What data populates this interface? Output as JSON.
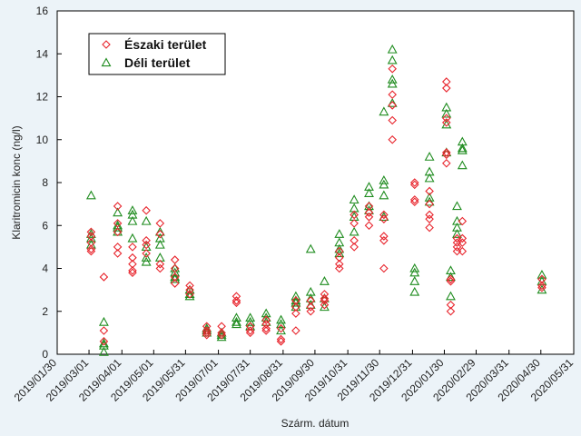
{
  "chart_data": {
    "type": "scatter",
    "title": "",
    "xlabel": "Szárm. dátum",
    "ylabel": "Klaritromicin konc (ng/l)",
    "ylim": [
      0,
      16
    ],
    "yticks": [
      "0",
      "2",
      "4",
      "6",
      "8",
      "10",
      "12",
      "14",
      "16"
    ],
    "xlim": [
      "2019-01-30",
      "2020-05-31"
    ],
    "xticks": [
      {
        "label": "2019/01/30",
        "date": "2019-01-30"
      },
      {
        "label": "2019/03/01",
        "date": "2019-03-01"
      },
      {
        "label": "2019/04/01",
        "date": "2019-04-01"
      },
      {
        "label": "2019/05/01",
        "date": "2019-05-01"
      },
      {
        "label": "2019/05/31",
        "date": "2019-05-31"
      },
      {
        "label": "2019/07/01",
        "date": "2019-07-01"
      },
      {
        "label": "2019/07/31",
        "date": "2019-07-31"
      },
      {
        "label": "2019/08/31",
        "date": "2019-08-31"
      },
      {
        "label": "2019/09/30",
        "date": "2019-09-30"
      },
      {
        "label": "2019/10/31",
        "date": "2019-10-31"
      },
      {
        "label": "2019/11/30",
        "date": "2019-11-30"
      },
      {
        "label": "2019/12/31",
        "date": "2019-12-31"
      },
      {
        "label": "2020/01/30",
        "date": "2020-01-30"
      },
      {
        "label": "2020/02/29",
        "date": "2020-02-29"
      },
      {
        "label": "2020/03/31",
        "date": "2020-03-31"
      },
      {
        "label": "2020/04/30",
        "date": "2020-04-30"
      },
      {
        "label": "2020/05/31",
        "date": "2020-05-31"
      }
    ],
    "grid": false,
    "legend_position": "top-left",
    "series": [
      {
        "name": "Északi terület",
        "marker": "diamond",
        "color": "#e8242c",
        "points": [
          [
            "2019-03-03",
            5.7
          ],
          [
            "2019-03-03",
            5.5
          ],
          [
            "2019-03-03",
            5.2
          ],
          [
            "2019-03-03",
            4.9
          ],
          [
            "2019-03-03",
            4.8
          ],
          [
            "2019-03-15",
            3.6
          ],
          [
            "2019-03-15",
            1.1
          ],
          [
            "2019-03-15",
            0.6
          ],
          [
            "2019-03-28",
            6.9
          ],
          [
            "2019-03-28",
            6.1
          ],
          [
            "2019-03-28",
            5.7
          ],
          [
            "2019-03-28",
            5.0
          ],
          [
            "2019-03-28",
            4.7
          ],
          [
            "2019-04-11",
            5.0
          ],
          [
            "2019-04-11",
            4.5
          ],
          [
            "2019-04-11",
            4.2
          ],
          [
            "2019-04-11",
            3.9
          ],
          [
            "2019-04-11",
            3.8
          ],
          [
            "2019-04-24",
            6.7
          ],
          [
            "2019-04-24",
            5.3
          ],
          [
            "2019-04-24",
            5.1
          ],
          [
            "2019-04-24",
            4.7
          ],
          [
            "2019-05-07",
            6.1
          ],
          [
            "2019-05-07",
            5.6
          ],
          [
            "2019-05-07",
            4.2
          ],
          [
            "2019-05-07",
            4.0
          ],
          [
            "2019-05-21",
            4.4
          ],
          [
            "2019-05-21",
            4.0
          ],
          [
            "2019-05-21",
            3.6
          ],
          [
            "2019-05-21",
            3.3
          ],
          [
            "2019-06-04",
            3.2
          ],
          [
            "2019-06-04",
            3.0
          ],
          [
            "2019-06-04",
            2.8
          ],
          [
            "2019-06-20",
            1.3
          ],
          [
            "2019-06-20",
            1.1
          ],
          [
            "2019-06-20",
            1.0
          ],
          [
            "2019-06-20",
            0.9
          ],
          [
            "2019-07-04",
            1.3
          ],
          [
            "2019-07-04",
            1.0
          ],
          [
            "2019-07-04",
            0.9
          ],
          [
            "2019-07-18",
            2.7
          ],
          [
            "2019-07-18",
            2.5
          ],
          [
            "2019-07-18",
            2.4
          ],
          [
            "2019-07-31",
            1.3
          ],
          [
            "2019-07-31",
            1.1
          ],
          [
            "2019-07-31",
            1.0
          ],
          [
            "2019-08-15",
            1.6
          ],
          [
            "2019-08-15",
            1.4
          ],
          [
            "2019-08-15",
            1.2
          ],
          [
            "2019-08-15",
            1.1
          ],
          [
            "2019-08-29",
            1.2
          ],
          [
            "2019-08-29",
            0.7
          ],
          [
            "2019-08-29",
            0.6
          ],
          [
            "2019-09-12",
            2.5
          ],
          [
            "2019-09-12",
            2.2
          ],
          [
            "2019-09-12",
            1.9
          ],
          [
            "2019-09-12",
            1.1
          ],
          [
            "2019-09-26",
            2.5
          ],
          [
            "2019-09-26",
            2.2
          ],
          [
            "2019-09-26",
            2.0
          ],
          [
            "2019-10-09",
            2.8
          ],
          [
            "2019-10-09",
            2.6
          ],
          [
            "2019-10-09",
            2.5
          ],
          [
            "2019-10-09",
            2.3
          ],
          [
            "2019-10-23",
            4.8
          ],
          [
            "2019-10-23",
            4.5
          ],
          [
            "2019-10-23",
            4.2
          ],
          [
            "2019-10-23",
            4.0
          ],
          [
            "2019-11-06",
            6.5
          ],
          [
            "2019-11-06",
            6.1
          ],
          [
            "2019-11-06",
            5.3
          ],
          [
            "2019-11-06",
            5.0
          ],
          [
            "2019-11-20",
            6.9
          ],
          [
            "2019-11-20",
            6.6
          ],
          [
            "2019-11-20",
            6.4
          ],
          [
            "2019-11-20",
            6.0
          ],
          [
            "2019-12-04",
            6.5
          ],
          [
            "2019-12-04",
            6.3
          ],
          [
            "2019-12-04",
            5.5
          ],
          [
            "2019-12-04",
            5.3
          ],
          [
            "2019-12-04",
            4.0
          ],
          [
            "2019-12-12",
            13.3
          ],
          [
            "2019-12-12",
            12.1
          ],
          [
            "2019-12-12",
            11.6
          ],
          [
            "2019-12-12",
            10.9
          ],
          [
            "2019-12-12",
            10.0
          ],
          [
            "2020-01-02",
            8.0
          ],
          [
            "2020-01-02",
            7.9
          ],
          [
            "2020-01-02",
            7.2
          ],
          [
            "2020-01-02",
            7.1
          ],
          [
            "2020-01-16",
            7.6
          ],
          [
            "2020-01-16",
            7.0
          ],
          [
            "2020-01-16",
            6.5
          ],
          [
            "2020-01-16",
            6.3
          ],
          [
            "2020-01-16",
            5.9
          ],
          [
            "2020-02-01",
            12.7
          ],
          [
            "2020-02-01",
            12.4
          ],
          [
            "2020-02-01",
            11.0
          ],
          [
            "2020-02-01",
            10.8
          ],
          [
            "2020-02-01",
            9.4
          ],
          [
            "2020-02-01",
            9.3
          ],
          [
            "2020-02-01",
            8.9
          ],
          [
            "2020-02-05",
            3.5
          ],
          [
            "2020-02-05",
            3.4
          ],
          [
            "2020-02-05",
            2.3
          ],
          [
            "2020-02-05",
            2.0
          ],
          [
            "2020-02-11",
            5.4
          ],
          [
            "2020-02-11",
            5.2
          ],
          [
            "2020-02-11",
            5.0
          ],
          [
            "2020-02-11",
            4.8
          ],
          [
            "2020-02-16",
            6.2
          ],
          [
            "2020-02-16",
            5.4
          ],
          [
            "2020-02-16",
            5.2
          ],
          [
            "2020-02-16",
            4.8
          ],
          [
            "2020-05-01",
            3.5
          ],
          [
            "2020-05-01",
            3.2
          ],
          [
            "2020-05-01",
            3.1
          ]
        ]
      },
      {
        "name": "Déli terület",
        "marker": "triangle",
        "color": "#1f8c1f",
        "points": [
          [
            "2019-03-03",
            7.4
          ],
          [
            "2019-03-03",
            5.6
          ],
          [
            "2019-03-03",
            5.4
          ],
          [
            "2019-03-03",
            5.1
          ],
          [
            "2019-03-15",
            1.5
          ],
          [
            "2019-03-15",
            0.5
          ],
          [
            "2019-03-15",
            0.4
          ],
          [
            "2019-03-15",
            0.1
          ],
          [
            "2019-03-28",
            6.6
          ],
          [
            "2019-03-28",
            6.0
          ],
          [
            "2019-03-28",
            5.9
          ],
          [
            "2019-03-28",
            5.7
          ],
          [
            "2019-04-11",
            6.7
          ],
          [
            "2019-04-11",
            6.5
          ],
          [
            "2019-04-11",
            6.2
          ],
          [
            "2019-04-11",
            5.4
          ],
          [
            "2019-04-24",
            6.2
          ],
          [
            "2019-04-24",
            5.0
          ],
          [
            "2019-04-24",
            4.5
          ],
          [
            "2019-04-24",
            4.3
          ],
          [
            "2019-05-07",
            5.7
          ],
          [
            "2019-05-07",
            5.4
          ],
          [
            "2019-05-07",
            5.1
          ],
          [
            "2019-05-07",
            4.5
          ],
          [
            "2019-05-21",
            4.0
          ],
          [
            "2019-05-21",
            3.8
          ],
          [
            "2019-05-21",
            3.6
          ],
          [
            "2019-05-21",
            3.5
          ],
          [
            "2019-06-04",
            3.0
          ],
          [
            "2019-06-04",
            2.8
          ],
          [
            "2019-06-04",
            2.7
          ],
          [
            "2019-06-20",
            1.2
          ],
          [
            "2019-06-20",
            1.1
          ],
          [
            "2019-06-20",
            1.0
          ],
          [
            "2019-07-04",
            1.0
          ],
          [
            "2019-07-04",
            0.9
          ],
          [
            "2019-07-04",
            0.8
          ],
          [
            "2019-07-18",
            1.7
          ],
          [
            "2019-07-18",
            1.5
          ],
          [
            "2019-07-18",
            1.4
          ],
          [
            "2019-07-31",
            1.7
          ],
          [
            "2019-07-31",
            1.5
          ],
          [
            "2019-07-31",
            1.3
          ],
          [
            "2019-08-15",
            1.9
          ],
          [
            "2019-08-15",
            1.7
          ],
          [
            "2019-08-15",
            1.5
          ],
          [
            "2019-08-29",
            1.6
          ],
          [
            "2019-08-29",
            1.4
          ],
          [
            "2019-08-29",
            1.1
          ],
          [
            "2019-09-12",
            2.7
          ],
          [
            "2019-09-12",
            2.5
          ],
          [
            "2019-09-12",
            2.4
          ],
          [
            "2019-09-12",
            2.2
          ],
          [
            "2019-09-26",
            4.9
          ],
          [
            "2019-09-26",
            2.9
          ],
          [
            "2019-09-26",
            2.6
          ],
          [
            "2019-09-26",
            2.3
          ],
          [
            "2019-10-09",
            3.4
          ],
          [
            "2019-10-09",
            2.6
          ],
          [
            "2019-10-09",
            2.2
          ],
          [
            "2019-10-23",
            5.6
          ],
          [
            "2019-10-23",
            5.2
          ],
          [
            "2019-10-23",
            4.9
          ],
          [
            "2019-10-23",
            4.7
          ],
          [
            "2019-11-06",
            7.2
          ],
          [
            "2019-11-06",
            6.8
          ],
          [
            "2019-11-06",
            6.4
          ],
          [
            "2019-11-06",
            5.7
          ],
          [
            "2019-11-20",
            7.8
          ],
          [
            "2019-11-20",
            7.5
          ],
          [
            "2019-11-20",
            6.9
          ],
          [
            "2019-11-20",
            6.7
          ],
          [
            "2019-12-04",
            11.3
          ],
          [
            "2019-12-04",
            8.1
          ],
          [
            "2019-12-04",
            7.9
          ],
          [
            "2019-12-04",
            7.4
          ],
          [
            "2019-12-04",
            6.4
          ],
          [
            "2019-12-12",
            14.2
          ],
          [
            "2019-12-12",
            13.7
          ],
          [
            "2019-12-12",
            12.8
          ],
          [
            "2019-12-12",
            12.6
          ],
          [
            "2019-12-12",
            11.7
          ],
          [
            "2020-01-02",
            4.0
          ],
          [
            "2020-01-02",
            3.8
          ],
          [
            "2020-01-02",
            3.4
          ],
          [
            "2020-01-02",
            2.9
          ],
          [
            "2020-01-16",
            9.2
          ],
          [
            "2020-01-16",
            8.5
          ],
          [
            "2020-01-16",
            8.2
          ],
          [
            "2020-01-16",
            7.3
          ],
          [
            "2020-01-16",
            7.1
          ],
          [
            "2020-02-01",
            11.5
          ],
          [
            "2020-02-01",
            11.2
          ],
          [
            "2020-02-01",
            10.7
          ],
          [
            "2020-02-01",
            9.4
          ],
          [
            "2020-02-05",
            3.9
          ],
          [
            "2020-02-05",
            3.6
          ],
          [
            "2020-02-05",
            2.7
          ],
          [
            "2020-02-11",
            6.9
          ],
          [
            "2020-02-11",
            6.2
          ],
          [
            "2020-02-11",
            5.9
          ],
          [
            "2020-02-11",
            5.6
          ],
          [
            "2020-02-16",
            9.9
          ],
          [
            "2020-02-16",
            9.6
          ],
          [
            "2020-02-16",
            9.5
          ],
          [
            "2020-02-16",
            8.8
          ],
          [
            "2020-05-01",
            3.7
          ],
          [
            "2020-05-01",
            3.4
          ],
          [
            "2020-05-01",
            3.0
          ]
        ]
      }
    ]
  }
}
